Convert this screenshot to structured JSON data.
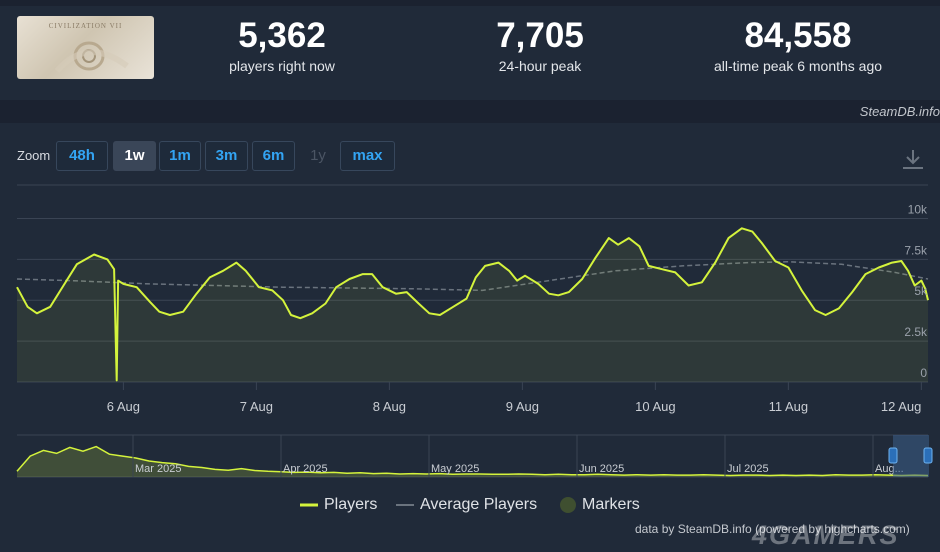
{
  "header": {
    "thumbnail_caption": "CIVILIZATION VII",
    "stats": [
      {
        "value": "5,362",
        "label": "players right now"
      },
      {
        "value": "7,705",
        "label": "24-hour peak"
      },
      {
        "value": "84,558",
        "label": "all-time peak 6 months ago"
      }
    ],
    "watermark": "SteamDB.info"
  },
  "zoom": {
    "label": "Zoom",
    "options": [
      {
        "label": "48h",
        "state": "normal"
      },
      {
        "label": "1w",
        "state": "active"
      },
      {
        "label": "1m",
        "state": "normal"
      },
      {
        "label": "3m",
        "state": "normal"
      },
      {
        "label": "6m",
        "state": "normal"
      },
      {
        "label": "1y",
        "state": "disabled"
      },
      {
        "label": "max",
        "state": "normal"
      }
    ]
  },
  "colors": {
    "players": "#d4f33c",
    "average": "#6a737e",
    "markers": "#3f4f30",
    "grid": "#3a4454",
    "navigator_mask": "#3d5e8a"
  },
  "chart_data": {
    "type": "line",
    "yaxis": {
      "range": [
        0,
        10000
      ],
      "ticks": [
        "0",
        "2.5k",
        "5k",
        "7.5k",
        "10k"
      ],
      "tick_values": [
        0,
        2500,
        5000,
        7500,
        10000
      ],
      "side": "right"
    },
    "xaxis": {
      "range_days": [
        5.2,
        12.05
      ],
      "ticks": [
        "6 Aug",
        "7 Aug",
        "8 Aug",
        "9 Aug",
        "10 Aug",
        "11 Aug",
        "12 Aug"
      ],
      "tick_values": [
        6,
        7,
        8,
        9,
        10,
        11,
        12
      ]
    },
    "grid": true,
    "series": [
      {
        "name": "Players",
        "points": [
          [
            5.2,
            5800
          ],
          [
            5.28,
            4600
          ],
          [
            5.35,
            4200
          ],
          [
            5.45,
            4600
          ],
          [
            5.55,
            5900
          ],
          [
            5.65,
            7200
          ],
          [
            5.78,
            7800
          ],
          [
            5.88,
            7500
          ],
          [
            5.93,
            6900
          ],
          [
            5.95,
            100
          ],
          [
            5.96,
            6200
          ],
          [
            6.0,
            6000
          ],
          [
            6.1,
            5800
          ],
          [
            6.2,
            4900
          ],
          [
            6.27,
            4300
          ],
          [
            6.35,
            4100
          ],
          [
            6.45,
            4300
          ],
          [
            6.55,
            5400
          ],
          [
            6.65,
            6400
          ],
          [
            6.75,
            6800
          ],
          [
            6.85,
            7300
          ],
          [
            6.92,
            6800
          ],
          [
            7.02,
            5800
          ],
          [
            7.12,
            5600
          ],
          [
            7.2,
            5000
          ],
          [
            7.26,
            4100
          ],
          [
            7.33,
            3900
          ],
          [
            7.42,
            4200
          ],
          [
            7.52,
            4800
          ],
          [
            7.6,
            5800
          ],
          [
            7.7,
            6300
          ],
          [
            7.8,
            6600
          ],
          [
            7.87,
            6600
          ],
          [
            7.95,
            5800
          ],
          [
            8.05,
            5400
          ],
          [
            8.13,
            5500
          ],
          [
            8.22,
            4800
          ],
          [
            8.3,
            4200
          ],
          [
            8.38,
            4100
          ],
          [
            8.48,
            4600
          ],
          [
            8.58,
            5100
          ],
          [
            8.65,
            6400
          ],
          [
            8.72,
            7100
          ],
          [
            8.82,
            7300
          ],
          [
            8.9,
            6800
          ],
          [
            8.96,
            6200
          ],
          [
            9.02,
            6500
          ],
          [
            9.12,
            6000
          ],
          [
            9.2,
            5400
          ],
          [
            9.27,
            5300
          ],
          [
            9.35,
            5500
          ],
          [
            9.45,
            6300
          ],
          [
            9.55,
            7600
          ],
          [
            9.65,
            8800
          ],
          [
            9.72,
            8400
          ],
          [
            9.8,
            8800
          ],
          [
            9.88,
            8300
          ],
          [
            9.95,
            7100
          ],
          [
            10.05,
            6900
          ],
          [
            10.15,
            6700
          ],
          [
            10.25,
            5900
          ],
          [
            10.35,
            6100
          ],
          [
            10.45,
            7300
          ],
          [
            10.55,
            8800
          ],
          [
            10.65,
            9400
          ],
          [
            10.73,
            9200
          ],
          [
            10.8,
            8500
          ],
          [
            10.9,
            7400
          ],
          [
            11.0,
            7000
          ],
          [
            11.1,
            5600
          ],
          [
            11.2,
            4400
          ],
          [
            11.28,
            4100
          ],
          [
            11.38,
            4500
          ],
          [
            11.48,
            5500
          ],
          [
            11.58,
            6600
          ],
          [
            11.68,
            7000
          ],
          [
            11.78,
            7300
          ],
          [
            11.85,
            7400
          ],
          [
            11.9,
            6800
          ],
          [
            11.95,
            5900
          ],
          [
            12.0,
            6200
          ],
          [
            12.03,
            5700
          ],
          [
            12.05,
            5000
          ]
        ]
      },
      {
        "name": "Average Players",
        "points": [
          [
            5.2,
            6300
          ],
          [
            5.6,
            6200
          ],
          [
            6.2,
            6000
          ],
          [
            7.2,
            5800
          ],
          [
            8.2,
            5700
          ],
          [
            8.7,
            5600
          ],
          [
            9.2,
            6200
          ],
          [
            9.7,
            6800
          ],
          [
            10.2,
            7100
          ],
          [
            10.7,
            7300
          ],
          [
            11.0,
            7350
          ],
          [
            11.4,
            7200
          ],
          [
            11.8,
            6700
          ],
          [
            12.05,
            6300
          ]
        ]
      }
    ],
    "navigator": {
      "month_labels": [
        "Mar 2025",
        "Apr 2025",
        "May 2025",
        "Jun 2025",
        "Jul 2025",
        "Aug..."
      ],
      "series_values": [
        0.15,
        0.55,
        0.7,
        0.62,
        0.78,
        0.68,
        0.8,
        0.6,
        0.55,
        0.5,
        0.42,
        0.38,
        0.35,
        0.28,
        0.25,
        0.2,
        0.18,
        0.22,
        0.17,
        0.15,
        0.14,
        0.12,
        0.13,
        0.11,
        0.12,
        0.1,
        0.11,
        0.09,
        0.1,
        0.08,
        0.09,
        0.08,
        0.09,
        0.07,
        0.08,
        0.08,
        0.07,
        0.07,
        0.08,
        0.07,
        0.06,
        0.07,
        0.06,
        0.06,
        0.07,
        0.06,
        0.05,
        0.06,
        0.05,
        0.06,
        0.05,
        0.05,
        0.06,
        0.05,
        0.04,
        0.05,
        0.05,
        0.04,
        0.05,
        0.04,
        0.05,
        0.04,
        0.06,
        0.05,
        0.05,
        0.06,
        0.05,
        0.04,
        0.05,
        0.04
      ]
    }
  },
  "legend": [
    {
      "label": "Players",
      "icon": "line-swatch"
    },
    {
      "label": "Average Players",
      "icon": "dash-swatch"
    },
    {
      "label": "Markers",
      "icon": "circle-swatch"
    }
  ],
  "footer": {
    "credit": "data by SteamDB.info (powered by highcharts.com)",
    "brand": "4GAMERS"
  }
}
